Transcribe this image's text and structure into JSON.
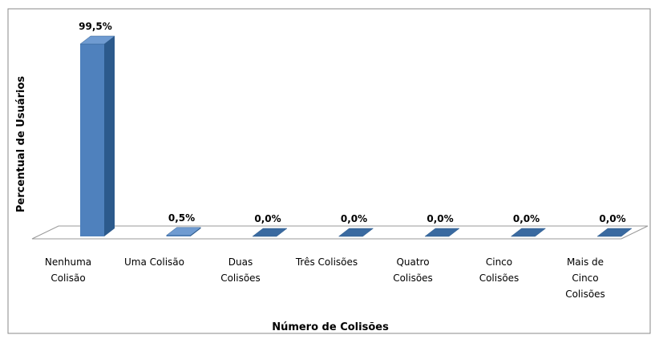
{
  "chart_data": {
    "type": "bar3d",
    "categories": [
      "Nenhuma\nColisão",
      "Uma Colisão",
      "Duas\nColisões",
      "Três Colisões",
      "Quatro\nColisões",
      "Cinco\nColisões",
      "Mais de\nCinco\nColisões"
    ],
    "values": [
      99.5,
      0.5,
      0.0,
      0.0,
      0.0,
      0.0,
      0.0
    ],
    "value_labels": [
      "99,5%",
      "0,5%",
      "0,0%",
      "0,0%",
      "0,0%",
      "0,0%",
      "0,0%"
    ],
    "color": "#4f81bd",
    "ylim": [
      0,
      100
    ],
    "ylabel": "Percentual de Usuários",
    "xlabel": "Número de Colisões"
  }
}
